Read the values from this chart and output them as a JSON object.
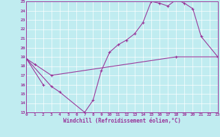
{
  "bg_color": "#c0ecf0",
  "line_color": "#993399",
  "grid_color": "#aadddd",
  "xlabel": "Windchill (Refroidissement éolien,°C)",
  "xmin": 0,
  "xmax": 23,
  "ymin": 13,
  "ymax": 25,
  "line1_x": [
    0,
    1,
    3,
    18,
    23
  ],
  "line1_y": [
    18.8,
    18.2,
    17.0,
    19.0,
    19.0
  ],
  "line2_x": [
    0,
    3,
    4,
    7,
    8,
    9,
    10,
    11,
    12,
    13,
    14,
    15,
    16,
    17,
    18,
    19,
    20,
    21,
    23
  ],
  "line2_y": [
    18.8,
    15.8,
    15.2,
    13.0,
    14.3,
    17.5,
    19.5,
    20.3,
    20.8,
    21.5,
    22.7,
    25.0,
    24.8,
    24.5,
    25.2,
    24.8,
    24.2,
    21.2,
    19.0
  ],
  "line3_x": [
    0,
    2
  ],
  "line3_y": [
    18.8,
    16.0
  ]
}
